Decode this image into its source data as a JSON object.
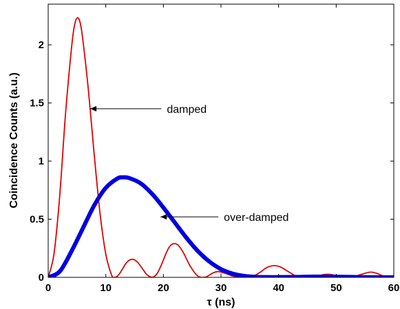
{
  "chart_data": {
    "type": "line",
    "xlabel": "τ (ns)",
    "ylabel": "Coincidence Counts (a.u.)",
    "xlim": [
      0,
      60
    ],
    "ylim": [
      0,
      2.35
    ],
    "xticks": [
      0,
      10,
      20,
      30,
      40,
      50,
      60
    ],
    "yticks": [
      0,
      0.5,
      1,
      1.5,
      2
    ],
    "ytick_labels": [
      "0",
      "0.5",
      "1",
      "1.5",
      "2"
    ],
    "grid": false,
    "series": [
      {
        "name": "damped",
        "color": "#e00000",
        "style": "thin",
        "x": [
          0,
          1,
          2,
          3,
          4,
          4.5,
          5,
          5.5,
          6,
          7,
          8,
          9,
          10,
          11,
          11.5,
          12,
          12.5,
          13,
          13.5,
          14,
          14.5,
          15,
          15.5,
          16,
          16.5,
          17,
          17.5,
          18,
          18.5,
          19,
          19.5,
          20,
          20.5,
          21,
          21.5,
          22,
          22.5,
          23,
          23.5,
          24,
          24.5,
          25,
          25.5,
          26,
          26.5,
          27,
          27.5,
          28,
          28.5,
          29,
          29.5,
          30,
          31,
          32,
          33,
          34,
          35,
          36,
          37,
          37.5,
          38,
          38.5,
          39,
          39.5,
          40,
          40.5,
          41,
          42,
          43,
          44,
          45,
          46,
          47,
          48,
          49,
          50,
          51,
          52,
          53,
          54,
          55,
          56,
          57,
          58,
          59,
          60
        ],
        "y": [
          0,
          0.2,
          0.7,
          1.4,
          1.95,
          2.15,
          2.23,
          2.2,
          2.05,
          1.6,
          1.05,
          0.55,
          0.2,
          0.02,
          0.0,
          0.01,
          0.04,
          0.08,
          0.12,
          0.145,
          0.155,
          0.15,
          0.13,
          0.1,
          0.065,
          0.03,
          0.01,
          0.0,
          0.01,
          0.04,
          0.09,
          0.15,
          0.21,
          0.26,
          0.285,
          0.29,
          0.28,
          0.25,
          0.21,
          0.16,
          0.11,
          0.07,
          0.035,
          0.01,
          0.0,
          0.0,
          0.005,
          0.02,
          0.035,
          0.045,
          0.05,
          0.045,
          0.03,
          0.012,
          0.003,
          0.0,
          0.004,
          0.02,
          0.05,
          0.07,
          0.085,
          0.095,
          0.1,
          0.1,
          0.095,
          0.085,
          0.07,
          0.04,
          0.012,
          0.002,
          0.0,
          0.005,
          0.015,
          0.025,
          0.025,
          0.015,
          0.005,
          0.0,
          0.005,
          0.02,
          0.035,
          0.045,
          0.035,
          0.015,
          0.003,
          0.0
        ]
      },
      {
        "name": "over-damped",
        "color": "#0000e0",
        "style": "thick",
        "x": [
          0,
          2,
          4,
          6,
          8,
          10,
          12,
          13,
          14,
          16,
          18,
          20,
          22,
          24,
          26,
          28,
          30,
          32,
          34,
          36,
          38,
          40,
          42,
          44,
          46,
          48,
          50,
          52,
          54,
          56,
          58,
          60
        ],
        "y": [
          0,
          0.05,
          0.22,
          0.42,
          0.62,
          0.77,
          0.85,
          0.86,
          0.855,
          0.81,
          0.72,
          0.6,
          0.47,
          0.34,
          0.225,
          0.135,
          0.07,
          0.032,
          0.012,
          0.004,
          0.002,
          0.002,
          0.003,
          0.004,
          0.006,
          0.006,
          0.005,
          0.004,
          0.002,
          0.001,
          0.0,
          0.0
        ]
      }
    ],
    "annotations": [
      {
        "text": "damped",
        "arrow_to": [
          7.3,
          1.45
        ],
        "text_at": [
          20.6,
          1.45
        ]
      },
      {
        "text": "over-damped",
        "arrow_to": [
          19.5,
          0.52
        ],
        "text_at": [
          30.5,
          0.52
        ]
      }
    ]
  }
}
